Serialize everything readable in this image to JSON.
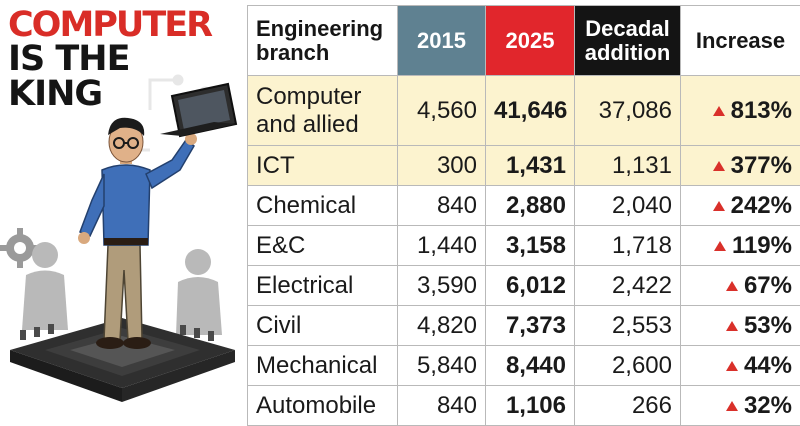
{
  "headline": [
    "COMPUTER",
    "IS THE",
    "KING"
  ],
  "columns": {
    "branch": "Engineering branch",
    "y2015": "2015",
    "y2025": "2025",
    "decadal": "Decadal addition",
    "increase": "Increase"
  },
  "rows": [
    {
      "branch": "Computer and allied",
      "y2015": "4,560",
      "y2025": "41,646",
      "decadal": "37,086",
      "increase": "813%",
      "highlight": true
    },
    {
      "branch": "ICT",
      "y2015": "300",
      "y2025": "1,431",
      "decadal": "1,131",
      "increase": "377%",
      "highlight": true
    },
    {
      "branch": "Chemical",
      "y2015": "840",
      "y2025": "2,880",
      "decadal": "2,040",
      "increase": "242%",
      "highlight": false
    },
    {
      "branch": "E&C",
      "y2015": "1,440",
      "y2025": "3,158",
      "decadal": "1,718",
      "increase": "119%",
      "highlight": false
    },
    {
      "branch": "Electrical",
      "y2015": "3,590",
      "y2025": "6,012",
      "decadal": "2,422",
      "increase": "67%",
      "highlight": false
    },
    {
      "branch": "Civil",
      "y2015": "4,820",
      "y2025": "7,373",
      "decadal": "2,553",
      "increase": "53%",
      "highlight": false
    },
    {
      "branch": "Mechanical",
      "y2015": "5,840",
      "y2025": "8,440",
      "decadal": "2,600",
      "increase": "44%",
      "highlight": false
    },
    {
      "branch": "Automobile",
      "y2015": "840",
      "y2025": "1,106",
      "decadal": "266",
      "increase": "32%",
      "highlight": false
    }
  ],
  "colors": {
    "header_2015": "#5f8191",
    "header_2025": "#e1262c",
    "header_decadal": "#141414",
    "highlight_row": "#fcf3cf",
    "up_arrow": "#d9302a",
    "headline_red": "#d92d27"
  },
  "icons": [
    "up-arrow-icon",
    "laptop-icon",
    "gear-icon",
    "microchip-icon"
  ]
}
